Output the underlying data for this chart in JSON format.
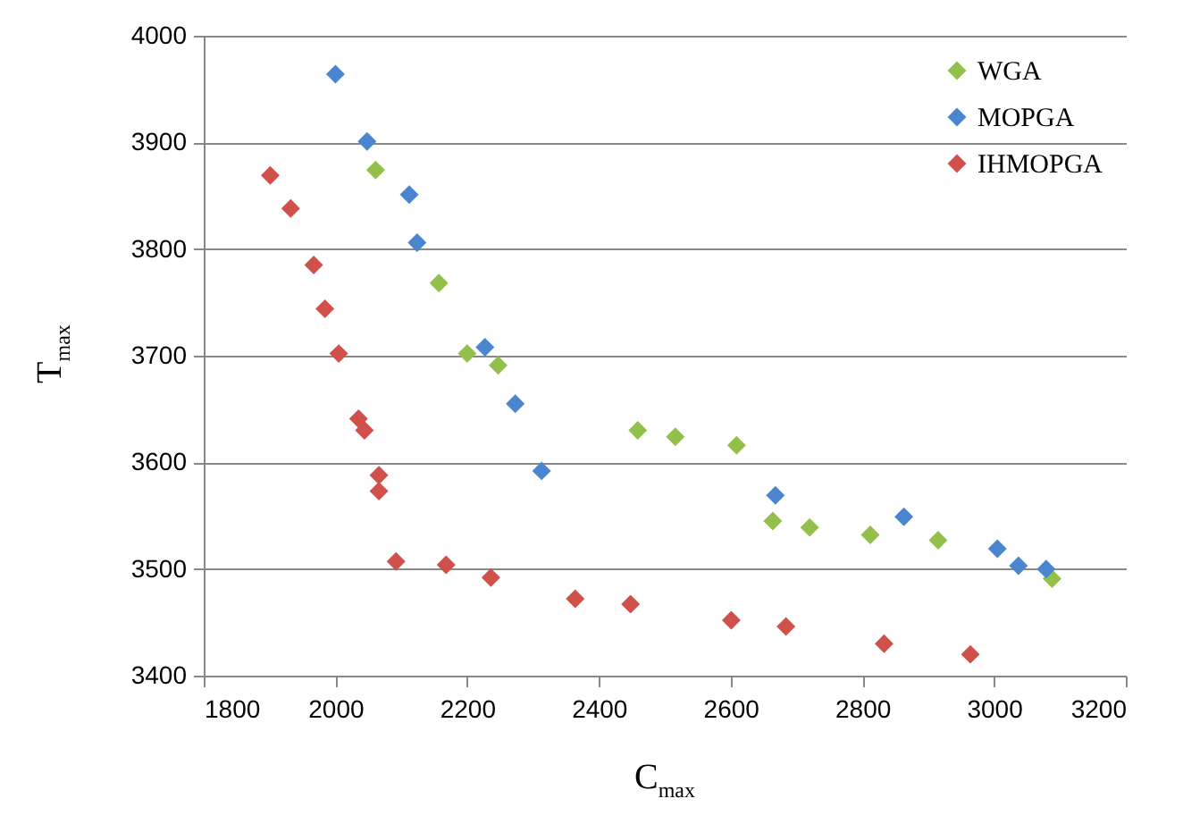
{
  "chart_data": {
    "type": "scatter",
    "xlabel": "C$_{max}$",
    "ylabel": "T$_{max}$",
    "xlim": [
      1800,
      3200
    ],
    "xticks": [
      1800,
      2000,
      2200,
      2400,
      2600,
      2800,
      3000,
      3200
    ],
    "ylim": [
      3400,
      4000
    ],
    "yticks": [
      3400,
      3500,
      3600,
      3700,
      3800,
      3900,
      4000
    ],
    "grid": "y",
    "legend": "top right",
    "marker": "diamond",
    "series": [
      {
        "name": "WGA",
        "color": "#92c04a",
        "x": [
          2061,
          2157,
          2200,
          2247,
          2459,
          2516,
          2609,
          2664,
          2720,
          2812,
          2915,
          3088
        ],
        "values": [
          3874,
          3768,
          3702,
          3691,
          3630,
          3624,
          3616,
          3545,
          3539,
          3532,
          3527,
          3491
        ]
      },
      {
        "name": "MOPGA",
        "color": "#4a86d0",
        "x": [
          2000,
          2048,
          2112,
          2124,
          2227,
          2273,
          2313,
          2668,
          2863,
          3005,
          3037,
          3079
        ],
        "values": [
          3964,
          3901,
          3851,
          3806,
          3708,
          3655,
          3592,
          3569,
          3549,
          3519,
          3503,
          3500
        ]
      },
      {
        "name": "IHMOPGA",
        "color": "#d0504b",
        "x": [
          1901,
          1932,
          1967,
          1984,
          2005,
          2035,
          2044,
          2066,
          2066,
          2092,
          2168,
          2236,
          2364,
          2448,
          2601,
          2684,
          2833,
          2964
        ],
        "values": [
          3869,
          3838,
          3785,
          3744,
          3702,
          3641,
          3630,
          3588,
          3573,
          3507,
          3504,
          3492,
          3472,
          3467,
          3452,
          3446,
          3430,
          3420
        ]
      }
    ]
  }
}
